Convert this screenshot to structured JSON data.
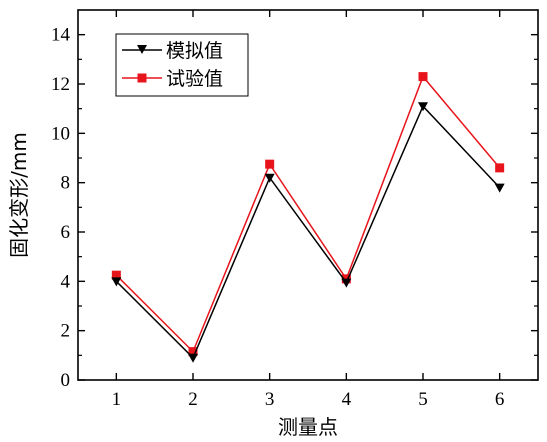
{
  "chart_data": {
    "type": "line",
    "title": "",
    "xlabel": "测量点",
    "ylabel": "固化变形/mm",
    "x": [
      1,
      2,
      3,
      4,
      5,
      6
    ],
    "xticks": [
      "1",
      "2",
      "3",
      "4",
      "5",
      "6"
    ],
    "yticks": [
      "0",
      "2",
      "4",
      "6",
      "8",
      "10",
      "12",
      "14"
    ],
    "xlim": [
      0.5,
      6.5
    ],
    "ylim": [
      0,
      15
    ],
    "grid": false,
    "legend_position": "top-left",
    "series": [
      {
        "name": "模拟值",
        "values": [
          4.0,
          0.9,
          8.2,
          3.95,
          11.1,
          7.8
        ],
        "color": "#000000",
        "marker": "triangle-down"
      },
      {
        "name": "试验值",
        "values": [
          4.25,
          1.15,
          8.75,
          4.1,
          12.3,
          8.6
        ],
        "color": "#e8141b",
        "marker": "square"
      }
    ]
  }
}
